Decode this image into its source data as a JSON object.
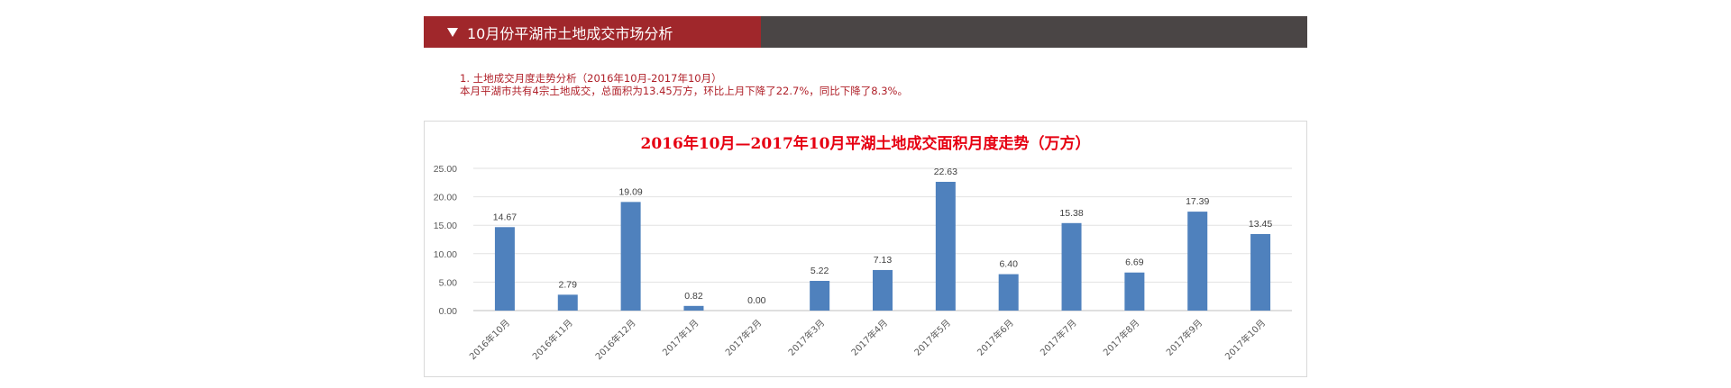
{
  "header": {
    "title": "10月份平湖市土地成交市场分析",
    "accent_color": "#a0272b",
    "bar_color": "#4a4545"
  },
  "intro": {
    "line1": "1. 土地成交月度走势分析（2016年10月-2017年10月）",
    "line2": "本月平湖市共有4宗土地成交，总面积为13.45万方，环比上月下降了22.7%，同比下降了8.3%。",
    "text_color": "#b0212a"
  },
  "chart_data": {
    "type": "bar",
    "title": "2016年10月—2017年10月平湖土地成交面积月度走势（万方）",
    "title_color": "#e60012",
    "bar_color": "#4f81bd",
    "categories": [
      "2016年10月",
      "2016年11月",
      "2016年12月",
      "2017年1月",
      "2017年2月",
      "2017年3月",
      "2017年4月",
      "2017年5月",
      "2017年6月",
      "2017年7月",
      "2017年8月",
      "2017年9月",
      "2017年10月"
    ],
    "values": [
      14.67,
      2.79,
      19.09,
      0.82,
      0.0,
      5.22,
      7.13,
      22.63,
      6.4,
      15.38,
      6.69,
      17.39,
      13.45
    ],
    "value_labels": [
      "14.67",
      "2.79",
      "19.09",
      "0.82",
      "0.00",
      "5.22",
      "7.13",
      "22.63",
      "6.40",
      "15.38",
      "6.69",
      "17.39",
      "13.45"
    ],
    "y_ticks": [
      "0.00",
      "5.00",
      "10.00",
      "15.00",
      "20.00",
      "25.00"
    ],
    "ylim": [
      0,
      25
    ],
    "grid": true,
    "xlabel": "",
    "ylabel": ""
  }
}
